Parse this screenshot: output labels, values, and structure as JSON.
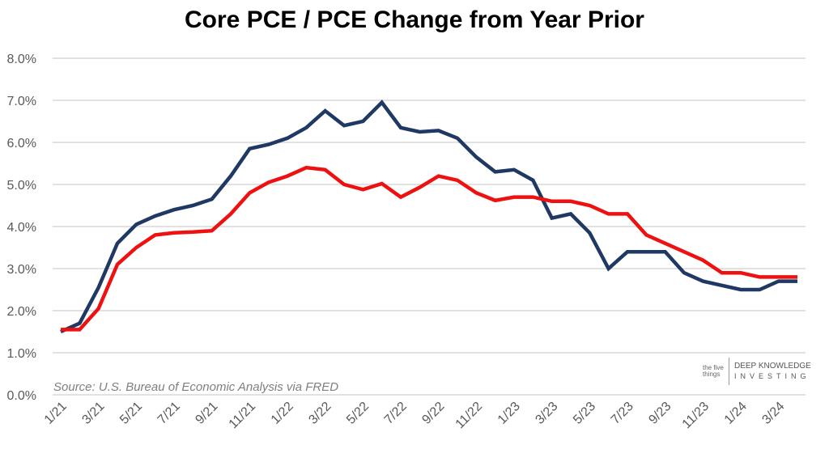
{
  "chart_data": {
    "type": "line",
    "title": "Core PCE / PCE Change from Year Prior",
    "xlabel": "",
    "ylabel": "",
    "ylim": [
      0,
      8
    ],
    "yticks": [
      "0.0%",
      "1.0%",
      "2.0%",
      "3.0%",
      "4.0%",
      "5.0%",
      "6.0%",
      "7.0%",
      "8.0%"
    ],
    "xtick_labels": [
      "1/21",
      "3/21",
      "5/21",
      "7/21",
      "9/21",
      "11/21",
      "1/22",
      "3/22",
      "5/22",
      "7/22",
      "9/22",
      "11/22",
      "1/23",
      "3/23",
      "5/23",
      "7/23",
      "9/23",
      "11/23",
      "1/24",
      "3/24"
    ],
    "x": [
      "1/21",
      "2/21",
      "3/21",
      "4/21",
      "5/21",
      "6/21",
      "7/21",
      "8/21",
      "9/21",
      "10/21",
      "11/21",
      "12/21",
      "1/22",
      "2/22",
      "3/22",
      "4/22",
      "5/22",
      "6/22",
      "7/22",
      "8/22",
      "9/22",
      "10/22",
      "11/22",
      "12/22",
      "1/23",
      "2/23",
      "3/23",
      "4/23",
      "5/23",
      "6/23",
      "7/23",
      "8/23",
      "9/23",
      "10/23",
      "11/23",
      "12/23",
      "1/24",
      "2/24",
      "3/24",
      "4/24"
    ],
    "grid": true,
    "legend": "none",
    "series": [
      {
        "color": "#1f3864",
        "values": [
          1.5,
          1.7,
          2.55,
          3.6,
          4.05,
          4.25,
          4.4,
          4.5,
          4.65,
          5.2,
          5.85,
          5.95,
          6.1,
          6.35,
          6.75,
          6.4,
          6.5,
          6.95,
          6.35,
          6.25,
          6.28,
          6.1,
          5.65,
          5.3,
          5.35,
          5.1,
          4.2,
          4.3,
          3.85,
          3.0,
          3.4,
          3.4,
          3.4,
          2.9,
          2.7,
          2.6,
          2.5,
          2.5,
          2.7,
          2.7
        ]
      },
      {
        "color": "#ee1111",
        "values": [
          1.55,
          1.55,
          2.05,
          3.1,
          3.5,
          3.8,
          3.85,
          3.87,
          3.9,
          4.3,
          4.8,
          5.05,
          5.2,
          5.4,
          5.35,
          5.0,
          4.88,
          5.02,
          4.7,
          4.93,
          5.2,
          5.1,
          4.8,
          4.62,
          4.7,
          4.7,
          4.6,
          4.6,
          4.5,
          4.3,
          4.3,
          3.8,
          3.6,
          3.4,
          3.2,
          2.9,
          2.9,
          2.8,
          2.8,
          2.8
        ]
      }
    ],
    "annotations": [
      "Source: U.S. Bureau of Economic Analysis via FRED"
    ]
  },
  "logo": {
    "left": "the five things",
    "line1": "DEEP KNOWLEDGE",
    "line2": "INVESTING"
  }
}
